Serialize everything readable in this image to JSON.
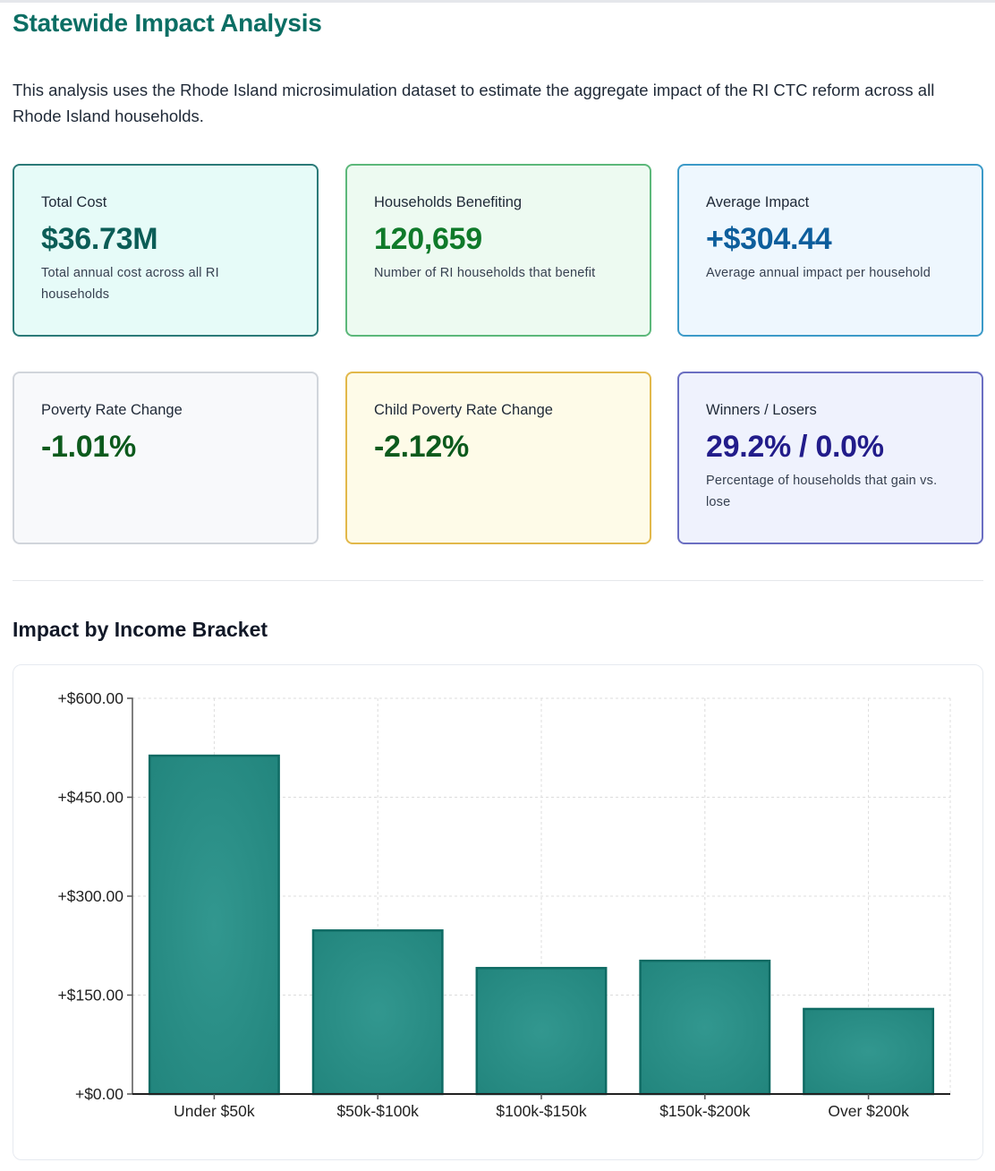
{
  "page": {
    "title": "Statewide Impact Analysis",
    "intro": "This analysis uses the Rhode Island microsimulation dataset to estimate the aggregate impact of the RI CTC reform across all Rhode Island households."
  },
  "cards": {
    "total_cost": {
      "label": "Total Cost",
      "value": "$36.73M",
      "description": "Total annual cost across all RI households"
    },
    "households_benefiting": {
      "label": "Households Benefiting",
      "value": "120,659",
      "description": "Number of RI households that benefit"
    },
    "average_impact": {
      "label": "Average Impact",
      "value": "+$304.44",
      "description": "Average annual impact per household"
    },
    "poverty_rate_change": {
      "label": "Poverty Rate Change",
      "value": "-1.01%"
    },
    "child_poverty_rate_change": {
      "label": "Child Poverty Rate Change",
      "value": "-2.12%"
    },
    "winners_losers": {
      "label": "Winners / Losers",
      "value": "29.2% / 0.0%",
      "description": "Percentage of households that gain vs. lose"
    }
  },
  "section": {
    "title": "Impact by Income Bracket"
  },
  "colors": {
    "bar_fill": "#2a9189",
    "bar_stroke": "#0f6b64",
    "title": "#0b6e64"
  },
  "chart_data": {
    "type": "bar",
    "title": "Impact by Income Bracket",
    "xlabel": "",
    "ylabel": "",
    "categories": [
      "Under $50k",
      "$50k-$100k",
      "$100k-$150k",
      "$150k-$200k",
      "Over $200k"
    ],
    "values": [
      513,
      248,
      191,
      202,
      129
    ],
    "ylim": [
      0,
      600
    ],
    "yticks": [
      0,
      150,
      300,
      450,
      600
    ],
    "ytick_labels": [
      "+$0.00",
      "+$150.00",
      "+$300.00",
      "+$450.00",
      "+$600.00"
    ],
    "grid": true,
    "legend": "none"
  }
}
